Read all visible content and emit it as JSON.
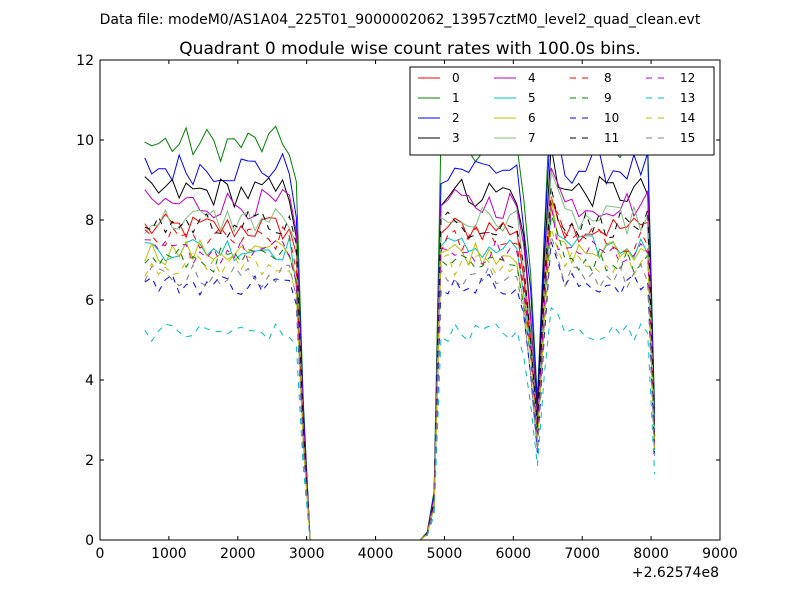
{
  "chart_data": {
    "type": "line",
    "suptitle": "Data file: modeM0/AS1A04_225T01_9000002062_13957cztM0_level2_quad_clean.evt",
    "title": "Quadrant 0 module wise count rates with 100.0s bins.",
    "xlabel": "",
    "ylabel": "",
    "xlim": [
      0,
      9000
    ],
    "ylim": [
      0,
      12
    ],
    "x_ticks": [
      "0",
      "1000",
      "2000",
      "3000",
      "4000",
      "5000",
      "6000",
      "7000",
      "8000",
      "9000"
    ],
    "y_ticks": [
      "0",
      "2",
      "4",
      "6",
      "8",
      "10",
      "12"
    ],
    "x_offset_label": "+2.62574e8",
    "legend_location": "upper right",
    "legend_columns": 4,
    "x_profile": [
      650,
      750,
      850,
      950,
      1050,
      1150,
      1250,
      1350,
      1450,
      1550,
      1650,
      1750,
      1850,
      1950,
      2050,
      2150,
      2250,
      2350,
      2450,
      2550,
      2650,
      2750,
      2850,
      2950,
      3050,
      3150,
      3250,
      3350,
      3450,
      3550,
      3650,
      3750,
      3850,
      3950,
      4050,
      4150,
      4250,
      4350,
      4450,
      4550,
      4650,
      4750,
      4850,
      4950,
      5050,
      5150,
      5250,
      5350,
      5450,
      5550,
      5650,
      5750,
      5850,
      5950,
      6050,
      6150,
      6250,
      6350,
      6450,
      6550,
      6650,
      6750,
      6850,
      6950,
      7050,
      7150,
      7250,
      7350,
      7450,
      7550,
      7650,
      7750,
      7850,
      7950,
      8050
    ],
    "profile_note": "Each series value = base_rate * shape[i] * (1 + noise); shape is shared across series.",
    "shape": [
      1.0,
      1.0,
      1.0,
      1.0,
      1.0,
      1.0,
      1.0,
      1.0,
      1.0,
      1.0,
      1.0,
      1.0,
      1.0,
      1.0,
      1.0,
      1.0,
      1.0,
      1.0,
      1.0,
      1.0,
      1.0,
      1.0,
      0.9,
      0.35,
      0.0,
      0.0,
      0.0,
      0.0,
      0.0,
      0.0,
      0.0,
      0.0,
      0.0,
      0.0,
      0.0,
      0.0,
      0.0,
      0.0,
      0.0,
      0.0,
      0.0,
      0.02,
      0.12,
      1.0,
      1.0,
      1.0,
      1.0,
      1.0,
      1.0,
      1.0,
      1.0,
      1.0,
      1.0,
      1.0,
      1.0,
      0.85,
      0.65,
      0.35,
      0.8,
      1.15,
      1.05,
      1.0,
      1.0,
      1.0,
      1.0,
      1.0,
      1.0,
      1.0,
      1.0,
      1.0,
      1.0,
      1.0,
      1.0,
      1.0,
      0.32
    ],
    "series": [
      {
        "name": "0",
        "color": "#ff0000",
        "dash": "solid",
        "base_rate": 7.8
      },
      {
        "name": "1",
        "color": "#008000",
        "dash": "solid",
        "base_rate": 9.9
      },
      {
        "name": "2",
        "color": "#0000ff",
        "dash": "solid",
        "base_rate": 9.3
      },
      {
        "name": "3",
        "color": "#000000",
        "dash": "solid",
        "base_rate": 8.7
      },
      {
        "name": "4",
        "color": "#bf00bf",
        "dash": "solid",
        "base_rate": 8.4
      },
      {
        "name": "5",
        "color": "#00bfbf",
        "dash": "solid",
        "base_rate": 7.3
      },
      {
        "name": "6",
        "color": "#bfbf00",
        "dash": "solid",
        "base_rate": 7.2
      },
      {
        "name": "7",
        "color": "#7fbf7f",
        "dash": "solid",
        "base_rate": 8.0
      },
      {
        "name": "8",
        "color": "#ff0000",
        "dash": "dashed",
        "base_rate": 7.5
      },
      {
        "name": "9",
        "color": "#008000",
        "dash": "dashed",
        "base_rate": 7.0
      },
      {
        "name": "10",
        "color": "#0000ff",
        "dash": "dashed",
        "base_rate": 6.4
      },
      {
        "name": "11",
        "color": "#000000",
        "dash": "dashed",
        "base_rate": 7.9
      },
      {
        "name": "12",
        "color": "#bf00bf",
        "dash": "dashed",
        "base_rate": 7.2
      },
      {
        "name": "13",
        "color": "#00bfbf",
        "dash": "dashed",
        "base_rate": 5.2
      },
      {
        "name": "14",
        "color": "#bfbf00",
        "dash": "dashed",
        "base_rate": 6.9
      },
      {
        "name": "15",
        "color": "#7f7f7f",
        "dash": "dashed",
        "base_rate": 6.6
      }
    ]
  }
}
